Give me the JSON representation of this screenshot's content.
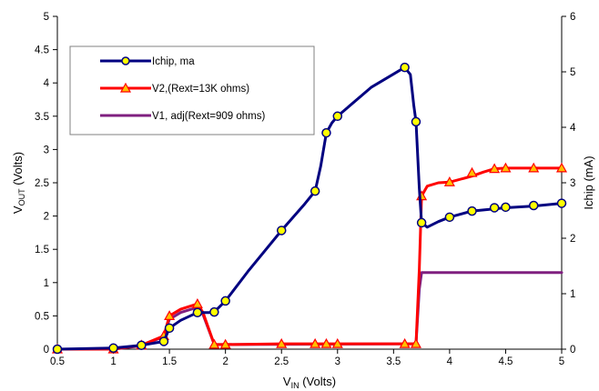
{
  "chart_data": {
    "type": "line",
    "title": "",
    "xlabel": {
      "main": "V",
      "sub": "IN",
      "rest": " (Volts)"
    },
    "ylabel_left": {
      "main": "V",
      "sub": "OUT",
      "rest": " (Volts)"
    },
    "ylabel_right": "Ichip (mA)",
    "xlim": [
      0.5,
      5
    ],
    "ylim_left": [
      0,
      5
    ],
    "ylim_right": [
      0,
      6
    ],
    "x_ticks": [
      "0.5",
      "1",
      "1.5",
      "2",
      "2.5",
      "3",
      "3.5",
      "4",
      "4.5",
      "5"
    ],
    "y_left_ticks": [
      "0",
      "0.5",
      "1",
      "1.5",
      "2",
      "2.5",
      "3",
      "3.5",
      "4",
      "4.5",
      "5"
    ],
    "y_right_ticks": [
      "0",
      "1",
      "2",
      "3",
      "4",
      "5",
      "6"
    ],
    "grid": false,
    "legend_position": "top-left",
    "series": [
      {
        "name": "Ichip, ma",
        "axis": "right",
        "color": "#000080",
        "marker": "circle",
        "marker_fill": "#ffff00",
        "line_points": [
          [
            0.5,
            0
          ],
          [
            1,
            0.02
          ],
          [
            1.25,
            0.07
          ],
          [
            1.45,
            0.14
          ],
          [
            1.5,
            0.38
          ],
          [
            1.6,
            0.52
          ],
          [
            1.75,
            0.66
          ],
          [
            1.85,
            0.66
          ],
          [
            1.9,
            0.67
          ],
          [
            2,
            0.87
          ],
          [
            2.2,
            1.4
          ],
          [
            2.5,
            2.14
          ],
          [
            2.7,
            2.6
          ],
          [
            2.8,
            2.85
          ],
          [
            2.85,
            3.3
          ],
          [
            2.9,
            3.9
          ],
          [
            2.95,
            4.08
          ],
          [
            3,
            4.2
          ],
          [
            3.3,
            4.72
          ],
          [
            3.5,
            4.96
          ],
          [
            3.6,
            5.08
          ],
          [
            3.65,
            4.95
          ],
          [
            3.68,
            4.4
          ],
          [
            3.7,
            4.1
          ],
          [
            3.73,
            2.9
          ],
          [
            3.75,
            2.28
          ],
          [
            3.8,
            2.2
          ],
          [
            3.9,
            2.3
          ],
          [
            4,
            2.38
          ],
          [
            4.2,
            2.49
          ],
          [
            4.5,
            2.55
          ],
          [
            4.75,
            2.58
          ],
          [
            5,
            2.63
          ]
        ],
        "marker_points": [
          [
            0.5,
            0
          ],
          [
            1,
            0.02
          ],
          [
            1.25,
            0.07
          ],
          [
            1.45,
            0.14
          ],
          [
            1.5,
            0.38
          ],
          [
            1.75,
            0.66
          ],
          [
            1.9,
            0.67
          ],
          [
            2,
            0.87
          ],
          [
            2.5,
            2.14
          ],
          [
            2.8,
            2.85
          ],
          [
            2.9,
            3.9
          ],
          [
            3,
            4.2
          ],
          [
            3.6,
            5.08
          ],
          [
            3.7,
            4.1
          ],
          [
            3.75,
            2.28
          ],
          [
            4,
            2.38
          ],
          [
            4.2,
            2.49
          ],
          [
            4.4,
            2.55
          ],
          [
            4.5,
            2.56
          ],
          [
            4.75,
            2.59
          ],
          [
            5,
            2.63
          ]
        ]
      },
      {
        "name": "V2,(Rext=13K ohms)",
        "axis": "left",
        "color": "#ff0000",
        "marker": "triangle",
        "marker_fill": "#ffc000",
        "line_points": [
          [
            0.5,
            0
          ],
          [
            1,
            0
          ],
          [
            1.25,
            0.06
          ],
          [
            1.45,
            0.2
          ],
          [
            1.5,
            0.5
          ],
          [
            1.6,
            0.6
          ],
          [
            1.75,
            0.68
          ],
          [
            1.8,
            0.55
          ],
          [
            1.9,
            0.07
          ],
          [
            2,
            0.07
          ],
          [
            2.5,
            0.08
          ],
          [
            3,
            0.08
          ],
          [
            3.6,
            0.08
          ],
          [
            3.7,
            0.08
          ],
          [
            3.73,
            1.2
          ],
          [
            3.75,
            2.3
          ],
          [
            3.8,
            2.45
          ],
          [
            3.9,
            2.5
          ],
          [
            4,
            2.51
          ],
          [
            4.2,
            2.6
          ],
          [
            4.3,
            2.66
          ],
          [
            4.4,
            2.71
          ],
          [
            4.5,
            2.72
          ],
          [
            5,
            2.72
          ]
        ],
        "marker_points": [
          [
            0.5,
            0
          ],
          [
            1,
            0
          ],
          [
            1.25,
            0.06
          ],
          [
            1.45,
            0.2
          ],
          [
            1.5,
            0.5
          ],
          [
            1.75,
            0.68
          ],
          [
            1.9,
            0.07
          ],
          [
            2,
            0.07
          ],
          [
            2.5,
            0.08
          ],
          [
            2.8,
            0.08
          ],
          [
            2.9,
            0.08
          ],
          [
            3,
            0.08
          ],
          [
            3.6,
            0.08
          ],
          [
            3.7,
            0.08
          ],
          [
            3.75,
            2.3
          ],
          [
            4,
            2.51
          ],
          [
            4.2,
            2.65
          ],
          [
            4.4,
            2.71
          ],
          [
            4.5,
            2.72
          ],
          [
            4.75,
            2.72
          ],
          [
            5,
            2.72
          ]
        ]
      },
      {
        "name": "V1, adj(Rext=909 ohms)",
        "axis": "left",
        "color": "#7f1f7f",
        "marker": "none",
        "line_points": [
          [
            0.5,
            0
          ],
          [
            1,
            0
          ],
          [
            1.25,
            0.05
          ],
          [
            1.45,
            0.19
          ],
          [
            1.5,
            0.45
          ],
          [
            1.6,
            0.55
          ],
          [
            1.75,
            0.63
          ],
          [
            1.8,
            0.52
          ],
          [
            1.9,
            0.07
          ],
          [
            2,
            0.07
          ],
          [
            3.7,
            0.08
          ],
          [
            3.73,
            0.9
          ],
          [
            3.75,
            1.15
          ],
          [
            5,
            1.15
          ]
        ],
        "marker_points": []
      }
    ]
  }
}
